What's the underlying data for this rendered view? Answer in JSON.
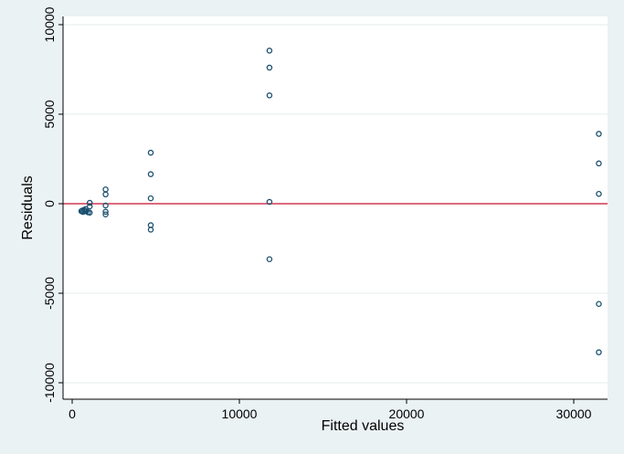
{
  "chart_data": {
    "type": "scatter",
    "title": "",
    "xlabel": "Fitted values",
    "ylabel": "Residuals",
    "xlim": [
      0,
      32000
    ],
    "ylim": [
      -10500,
      10500
    ],
    "xticks": [
      0,
      10000,
      20000,
      30000
    ],
    "yticks": [
      -10000,
      -5000,
      0,
      5000,
      10000
    ],
    "grid": "horizontal",
    "reference_line": {
      "y": 0,
      "color": "#c8102e"
    },
    "colors": {
      "background": "#eaf2f3",
      "plot_area": "#ffffff",
      "grid": "#e4ecee",
      "marker": "#1a4e6e"
    },
    "points": [
      {
        "x": 550,
        "y": -420
      },
      {
        "x": 600,
        "y": -380
      },
      {
        "x": 650,
        "y": -460
      },
      {
        "x": 700,
        "y": -350
      },
      {
        "x": 750,
        "y": -400
      },
      {
        "x": 800,
        "y": -300
      },
      {
        "x": 850,
        "y": -420
      },
      {
        "x": 950,
        "y": -480
      },
      {
        "x": 1050,
        "y": 50
      },
      {
        "x": 1050,
        "y": -150
      },
      {
        "x": 1050,
        "y": -500
      },
      {
        "x": 2000,
        "y": 800
      },
      {
        "x": 2000,
        "y": 520
      },
      {
        "x": 2000,
        "y": -100
      },
      {
        "x": 2000,
        "y": -450
      },
      {
        "x": 2000,
        "y": -600
      },
      {
        "x": 4700,
        "y": 2850
      },
      {
        "x": 4700,
        "y": 1650
      },
      {
        "x": 4700,
        "y": 300
      },
      {
        "x": 4700,
        "y": -1200
      },
      {
        "x": 4700,
        "y": -1450
      },
      {
        "x": 11800,
        "y": 8550
      },
      {
        "x": 11800,
        "y": 7600
      },
      {
        "x": 11800,
        "y": 6050
      },
      {
        "x": 11800,
        "y": 100
      },
      {
        "x": 11800,
        "y": -3100
      },
      {
        "x": 31500,
        "y": 3900
      },
      {
        "x": 31500,
        "y": 2250
      },
      {
        "x": 31500,
        "y": 550
      },
      {
        "x": 31500,
        "y": -5600
      },
      {
        "x": 31500,
        "y": -8300
      }
    ]
  }
}
